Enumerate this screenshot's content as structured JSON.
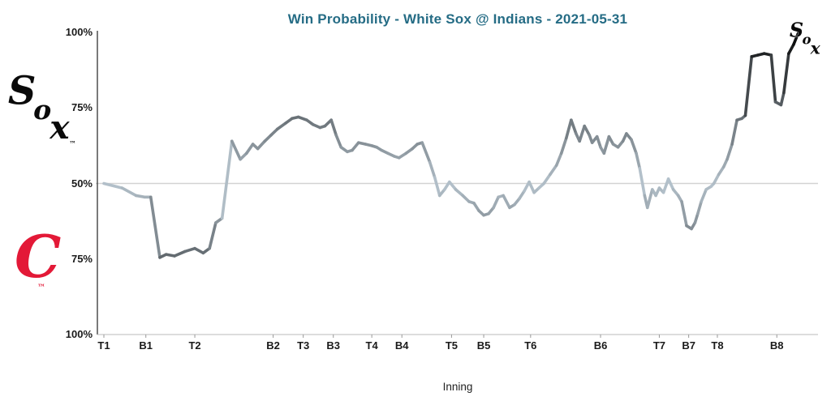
{
  "header": {
    "title": "Win Probability - White Sox @ Indians - 2021-05-31",
    "title_color": "#256c85"
  },
  "axis": {
    "x_title": "Inning"
  },
  "logos": {
    "whitesox": {
      "letters": [
        "S",
        "o",
        "x"
      ],
      "trademark": "™",
      "color": "#0a0a0a"
    },
    "indians": {
      "letter": "C",
      "trademark": "™",
      "color": "#e31937"
    }
  },
  "chart": {
    "grid_color": "#d3d3d3",
    "axis_color": "#222222",
    "line_color_at_50": "#bcc2c5",
    "line_color_at_extreme": "#0a0a0a"
  },
  "chart_data": {
    "type": "line",
    "title": "Win Probability - White Sox @ Indians - 2021-05-31",
    "xlabel": "Inning",
    "ylabel": "",
    "ylim": [
      0,
      100
    ],
    "baseline": 50,
    "grid": "single 50% horizontal gridline",
    "color_encoding": "line shade darkens with distance from 50% (light gray at 50%, black at 0%/100%)",
    "yticks": [
      {
        "label": "100%",
        "value": 100
      },
      {
        "label": "75%",
        "value": 75
      },
      {
        "label": "50%",
        "value": 50
      },
      {
        "label": "75%",
        "value": 25
      },
      {
        "label": "100%",
        "value": 0
      }
    ],
    "xticks": [
      {
        "label": "T1",
        "x": 0.0
      },
      {
        "label": "B1",
        "x": 0.06
      },
      {
        "label": "T2",
        "x": 0.13
      },
      {
        "label": "B2",
        "x": 0.242
      },
      {
        "label": "T3",
        "x": 0.285
      },
      {
        "label": "B3",
        "x": 0.328
      },
      {
        "label": "T4",
        "x": 0.383
      },
      {
        "label": "B4",
        "x": 0.426
      },
      {
        "label": "T5",
        "x": 0.497
      },
      {
        "label": "B5",
        "x": 0.543
      },
      {
        "label": "T6",
        "x": 0.61
      },
      {
        "label": "B6",
        "x": 0.71
      },
      {
        "label": "T7",
        "x": 0.794
      },
      {
        "label": "B7",
        "x": 0.836
      },
      {
        "label": "T8",
        "x": 0.877
      },
      {
        "label": "B8",
        "x": 0.962
      }
    ],
    "series": [
      {
        "name": "White Sox win probability (%)",
        "points": [
          [
            0.0,
            50
          ],
          [
            0.026,
            48.5
          ],
          [
            0.046,
            46
          ],
          [
            0.058,
            45.5
          ],
          [
            0.067,
            45.5
          ],
          [
            0.08,
            25.5
          ],
          [
            0.089,
            26.5
          ],
          [
            0.101,
            26
          ],
          [
            0.116,
            27.5
          ],
          [
            0.13,
            28.5
          ],
          [
            0.142,
            27
          ],
          [
            0.151,
            28.5
          ],
          [
            0.16,
            37
          ],
          [
            0.169,
            38.5
          ],
          [
            0.183,
            64
          ],
          [
            0.195,
            58
          ],
          [
            0.204,
            60
          ],
          [
            0.213,
            63
          ],
          [
            0.22,
            61.5
          ],
          [
            0.23,
            64
          ],
          [
            0.239,
            66
          ],
          [
            0.248,
            68
          ],
          [
            0.26,
            70
          ],
          [
            0.269,
            71.5
          ],
          [
            0.278,
            72
          ],
          [
            0.29,
            71
          ],
          [
            0.299,
            69.5
          ],
          [
            0.309,
            68.5
          ],
          [
            0.316,
            69
          ],
          [
            0.325,
            71
          ],
          [
            0.332,
            66
          ],
          [
            0.339,
            62
          ],
          [
            0.348,
            60.5
          ],
          [
            0.355,
            61
          ],
          [
            0.364,
            63.5
          ],
          [
            0.374,
            63
          ],
          [
            0.383,
            62.5
          ],
          [
            0.39,
            62
          ],
          [
            0.397,
            61
          ],
          [
            0.406,
            60
          ],
          [
            0.415,
            59
          ],
          [
            0.422,
            58.5
          ],
          [
            0.432,
            60
          ],
          [
            0.441,
            61.5
          ],
          [
            0.448,
            63
          ],
          [
            0.455,
            63.5
          ],
          [
            0.466,
            57
          ],
          [
            0.473,
            52
          ],
          [
            0.48,
            46
          ],
          [
            0.487,
            48
          ],
          [
            0.494,
            50.5
          ],
          [
            0.503,
            48
          ],
          [
            0.513,
            46
          ],
          [
            0.522,
            44
          ],
          [
            0.529,
            43.5
          ],
          [
            0.536,
            41
          ],
          [
            0.543,
            39.5
          ],
          [
            0.55,
            40
          ],
          [
            0.557,
            42
          ],
          [
            0.564,
            45.5
          ],
          [
            0.571,
            46
          ],
          [
            0.58,
            42
          ],
          [
            0.587,
            43
          ],
          [
            0.594,
            45
          ],
          [
            0.601,
            47.5
          ],
          [
            0.608,
            50.5
          ],
          [
            0.615,
            47
          ],
          [
            0.622,
            48.5
          ],
          [
            0.629,
            50
          ],
          [
            0.638,
            53
          ],
          [
            0.647,
            56
          ],
          [
            0.654,
            60
          ],
          [
            0.661,
            65
          ],
          [
            0.668,
            71
          ],
          [
            0.675,
            66.5
          ],
          [
            0.68,
            64
          ],
          [
            0.687,
            69
          ],
          [
            0.694,
            66
          ],
          [
            0.698,
            63.5
          ],
          [
            0.705,
            65.5
          ],
          [
            0.71,
            62
          ],
          [
            0.715,
            60
          ],
          [
            0.722,
            65.5
          ],
          [
            0.728,
            63
          ],
          [
            0.735,
            62
          ],
          [
            0.742,
            64
          ],
          [
            0.747,
            66.5
          ],
          [
            0.754,
            64.5
          ],
          [
            0.761,
            60
          ],
          [
            0.766,
            55
          ],
          [
            0.773,
            46
          ],
          [
            0.777,
            42
          ],
          [
            0.784,
            48
          ],
          [
            0.789,
            46
          ],
          [
            0.794,
            48.5
          ],
          [
            0.8,
            47
          ],
          [
            0.807,
            51.5
          ],
          [
            0.814,
            48
          ],
          [
            0.821,
            46
          ],
          [
            0.826,
            44
          ],
          [
            0.833,
            36
          ],
          [
            0.84,
            35
          ],
          [
            0.845,
            37
          ],
          [
            0.849,
            40
          ],
          [
            0.854,
            44
          ],
          [
            0.861,
            48
          ],
          [
            0.868,
            49
          ],
          [
            0.872,
            50
          ],
          [
            0.879,
            53
          ],
          [
            0.886,
            55.5
          ],
          [
            0.891,
            58
          ],
          [
            0.898,
            63
          ],
          [
            0.905,
            71
          ],
          [
            0.912,
            71.5
          ],
          [
            0.917,
            72.5
          ],
          [
            0.926,
            92
          ],
          [
            0.935,
            92.5
          ],
          [
            0.944,
            93
          ],
          [
            0.954,
            92.5
          ],
          [
            0.96,
            77
          ],
          [
            0.968,
            76
          ],
          [
            0.972,
            80
          ],
          [
            0.979,
            93
          ],
          [
            0.986,
            96
          ],
          [
            0.993,
            100
          ]
        ]
      }
    ],
    "legend": "none"
  }
}
